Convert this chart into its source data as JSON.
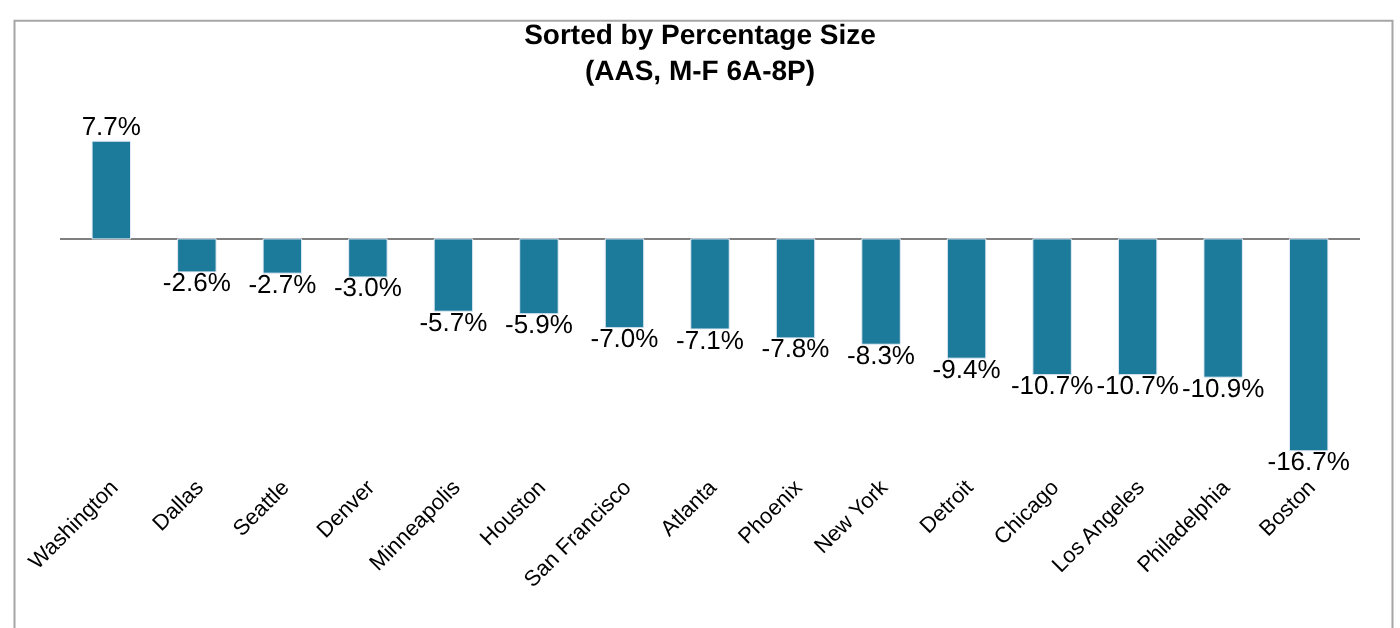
{
  "chart_data": {
    "type": "bar",
    "title": "Sorted by Percentage Size\n(AAS, M-F 6A-8P)",
    "categories": [
      "Washington",
      "Dallas",
      "Seattle",
      "Denver",
      "Minneapolis",
      "Houston",
      "San Francisco",
      "Atlanta",
      "Phoenix",
      "New York",
      "Detroit",
      "Chicago",
      "Los Angeles",
      "Philadelphia",
      "Boston"
    ],
    "values": [
      7.7,
      -2.6,
      -2.7,
      -3.0,
      -5.7,
      -5.9,
      -7.0,
      -7.1,
      -7.8,
      -8.3,
      -9.4,
      -10.7,
      -10.7,
      -10.9,
      -16.7
    ],
    "value_labels": [
      "7.7%",
      "-2.6%",
      "-2.7%",
      "-3.0%",
      "-5.7%",
      "-5.9%",
      "-7.0%",
      "-7.1%",
      "-7.8%",
      "-8.3%",
      "-9.4%",
      "-10.7%",
      "-10.7%",
      "-10.9%",
      "-16.7%"
    ],
    "color": "#1c7b9b"
  }
}
